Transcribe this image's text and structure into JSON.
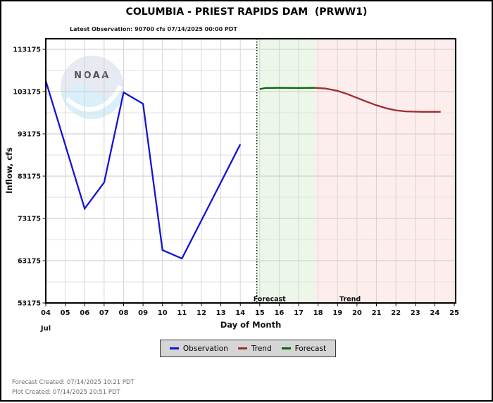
{
  "header": {
    "title": "COLUMBIA - PRIEST RAPIDS DAM  (PRWW1)",
    "subtitle": "Latest Observation: 90700 cfs 07/14/2025 00:00 PDT"
  },
  "chart_data": {
    "type": "line",
    "xlabel": "Day of Month",
    "ylabel": "Inflow, cfs",
    "month_label": "Jul",
    "units": "cfs",
    "x_range_days": [
      4,
      25.07
    ],
    "y_range": [
      53175,
      115675
    ],
    "x_ticks": [
      "04",
      "05",
      "06",
      "07",
      "08",
      "09",
      "10",
      "11",
      "12",
      "13",
      "14",
      "15",
      "16",
      "17",
      "18",
      "19",
      "20",
      "21",
      "22",
      "23",
      "24",
      "25"
    ],
    "y_ticks": [
      "113175",
      "103175",
      "93175",
      "83175",
      "73175",
      "63175",
      "53175"
    ],
    "y_minor_gridlines": [
      108175,
      98175,
      88175,
      78175,
      68175,
      58175
    ],
    "now_line_day": 14.85,
    "grid": true,
    "legend_position": "bottom",
    "series": [
      {
        "name": "Observation",
        "color": "#1414d4",
        "points": [
          [
            4,
            105700
          ],
          [
            5,
            90600
          ],
          [
            6,
            75500
          ],
          [
            7,
            81700
          ],
          [
            8,
            103000
          ],
          [
            9,
            100300
          ],
          [
            10,
            65700
          ],
          [
            11,
            63700
          ],
          [
            12,
            72700
          ],
          [
            13,
            81700
          ],
          [
            14,
            90700
          ]
        ]
      },
      {
        "name": "Forecast",
        "color": "#076607",
        "points": [
          [
            15,
            103780
          ],
          [
            15.3,
            104020
          ],
          [
            16,
            104060
          ],
          [
            17,
            104020
          ],
          [
            17.85,
            104060
          ]
        ]
      },
      {
        "name": "Trend",
        "color": "#9e2d2d",
        "points": [
          [
            17.85,
            104060
          ],
          [
            18.4,
            103900
          ],
          [
            19,
            103350
          ],
          [
            19.5,
            102600
          ],
          [
            20,
            101700
          ],
          [
            20.5,
            100800
          ],
          [
            21,
            99950
          ],
          [
            21.5,
            99250
          ],
          [
            22,
            98750
          ],
          [
            22.5,
            98500
          ],
          [
            23,
            98420
          ],
          [
            23.4,
            98400
          ],
          [
            24.3,
            98400
          ]
        ]
      }
    ],
    "regions": [
      {
        "name": "forecast-region",
        "label": "Forecast",
        "from": 14.85,
        "to": 17.85,
        "fill": "#ecf7e9",
        "label_day": 14.67
      },
      {
        "name": "trend-region",
        "label": "Trend",
        "from": 17.85,
        "to": 25.07,
        "fill": "#fdeeed",
        "label_day": 19.1
      }
    ]
  },
  "legend": {
    "items": [
      {
        "label": "Observation",
        "color": "#1414d4"
      },
      {
        "label": "Trend",
        "color": "#9e2d2d"
      },
      {
        "label": "Forecast",
        "color": "#076607"
      }
    ]
  },
  "watermark": {
    "text": "NOAA"
  },
  "footer": {
    "lines": [
      "Forecast Created: 07/14/2025 10:21 PDT",
      "Plot Created: 07/14/2025 20:51 PDT"
    ]
  }
}
